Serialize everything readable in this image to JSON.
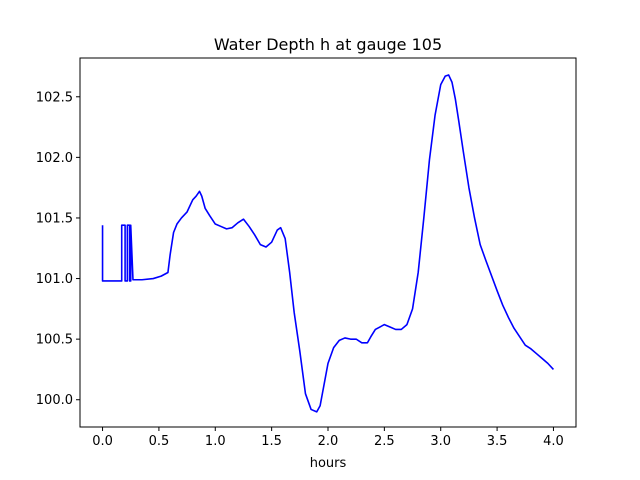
{
  "chart_data": {
    "type": "line",
    "title": "Water Depth h at gauge 105",
    "xlabel": "hours",
    "ylabel": "",
    "xlim": [
      -0.2,
      4.2
    ],
    "ylim": [
      99.775,
      102.82
    ],
    "xticks": [
      0.0,
      0.5,
      1.0,
      1.5,
      2.0,
      2.5,
      3.0,
      3.5,
      4.0
    ],
    "xtick_labels": [
      "0.0",
      "0.5",
      "1.0",
      "1.5",
      "2.0",
      "2.5",
      "3.0",
      "3.5",
      "4.0"
    ],
    "yticks": [
      100.0,
      100.5,
      101.0,
      101.5,
      102.0,
      102.5
    ],
    "ytick_labels": [
      "100.0",
      "100.5",
      "101.0",
      "101.5",
      "102.0",
      "102.5"
    ],
    "grid": false,
    "series": [
      {
        "name": "",
        "color": "#0000ff",
        "x": [
          0.0,
          0.0,
          0.01,
          0.08,
          0.17,
          0.17,
          0.2,
          0.2,
          0.22,
          0.22,
          0.24,
          0.24,
          0.25,
          0.25,
          0.27,
          0.35,
          0.45,
          0.52,
          0.58,
          0.6,
          0.63,
          0.66,
          0.7,
          0.75,
          0.8,
          0.83,
          0.86,
          0.88,
          0.91,
          0.95,
          1.0,
          1.05,
          1.1,
          1.15,
          1.2,
          1.25,
          1.3,
          1.35,
          1.4,
          1.45,
          1.5,
          1.55,
          1.58,
          1.62,
          1.66,
          1.7,
          1.75,
          1.8,
          1.85,
          1.9,
          1.93,
          1.96,
          2.0,
          2.05,
          2.1,
          2.15,
          2.2,
          2.25,
          2.3,
          2.35,
          2.38,
          2.42,
          2.46,
          2.5,
          2.55,
          2.6,
          2.65,
          2.7,
          2.75,
          2.8,
          2.85,
          2.9,
          2.95,
          3.0,
          3.04,
          3.07,
          3.1,
          3.13,
          3.16,
          3.2,
          3.25,
          3.3,
          3.35,
          3.4,
          3.5,
          3.55,
          3.6,
          3.65,
          3.7,
          3.75,
          3.8,
          3.85,
          3.9,
          3.95,
          4.0
        ],
        "y": [
          101.44,
          100.98,
          100.98,
          100.98,
          100.98,
          101.44,
          101.44,
          100.98,
          100.98,
          101.44,
          101.44,
          100.98,
          100.98,
          101.44,
          100.99,
          100.99,
          101.0,
          101.02,
          101.05,
          101.2,
          101.38,
          101.45,
          101.5,
          101.55,
          101.65,
          101.68,
          101.72,
          101.68,
          101.58,
          101.52,
          101.45,
          101.43,
          101.41,
          101.42,
          101.46,
          101.49,
          101.43,
          101.36,
          101.28,
          101.26,
          101.3,
          101.4,
          101.42,
          101.33,
          101.05,
          100.72,
          100.4,
          100.05,
          99.92,
          99.9,
          99.95,
          100.1,
          100.3,
          100.43,
          100.49,
          100.51,
          100.5,
          100.5,
          100.47,
          100.47,
          100.52,
          100.58,
          100.6,
          100.62,
          100.6,
          100.58,
          100.58,
          100.62,
          100.75,
          101.05,
          101.5,
          101.98,
          102.35,
          102.6,
          102.67,
          102.68,
          102.62,
          102.48,
          102.3,
          102.05,
          101.75,
          101.5,
          101.28,
          101.15,
          100.9,
          100.78,
          100.68,
          100.59,
          100.52,
          100.45,
          100.42,
          100.38,
          100.34,
          100.3,
          100.25
        ]
      }
    ]
  }
}
